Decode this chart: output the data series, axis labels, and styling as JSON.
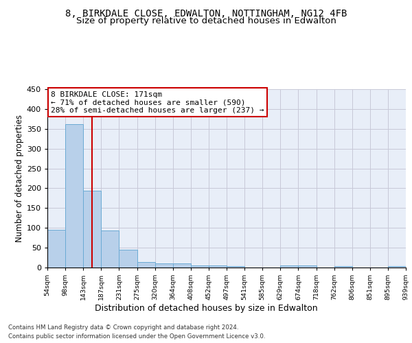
{
  "title": "8, BIRKDALE CLOSE, EDWALTON, NOTTINGHAM, NG12 4FB",
  "subtitle": "Size of property relative to detached houses in Edwalton",
  "xlabel": "Distribution of detached houses by size in Edwalton",
  "ylabel": "Number of detached properties",
  "bar_values": [
    96,
    362,
    194,
    94,
    45,
    14,
    10,
    10,
    5,
    6,
    3,
    0,
    0,
    5,
    5,
    0,
    4,
    0,
    0,
    4
  ],
  "all_labels": [
    "54sqm",
    "98sqm",
    "143sqm",
    "187sqm",
    "231sqm",
    "275sqm",
    "320sqm",
    "364sqm",
    "408sqm",
    "452sqm",
    "497sqm",
    "541sqm",
    "585sqm",
    "629sqm",
    "674sqm",
    "718sqm",
    "762sqm",
    "806sqm",
    "851sqm",
    "895sqm",
    "939sqm"
  ],
  "bar_color": "#b8d0ea",
  "bar_edge_color": "#6aaad4",
  "annotation_line1": "8 BIRKDALE CLOSE: 171sqm",
  "annotation_line2": "← 71% of detached houses are smaller (590)",
  "annotation_line3": "28% of semi-detached houses are larger (237) →",
  "vline_x": 2.5,
  "vline_color": "#cc0000",
  "ylim": [
    0,
    450
  ],
  "yticks": [
    0,
    50,
    100,
    150,
    200,
    250,
    300,
    350,
    400,
    450
  ],
  "grid_color": "#c8c8d8",
  "bg_color": "#e8eef8",
  "footer_line1": "Contains HM Land Registry data © Crown copyright and database right 2024.",
  "footer_line2": "Contains public sector information licensed under the Open Government Licence v3.0.",
  "title_fontsize": 10,
  "subtitle_fontsize": 9.5,
  "xlabel_fontsize": 9,
  "ylabel_fontsize": 8.5,
  "annotation_fontsize": 8
}
